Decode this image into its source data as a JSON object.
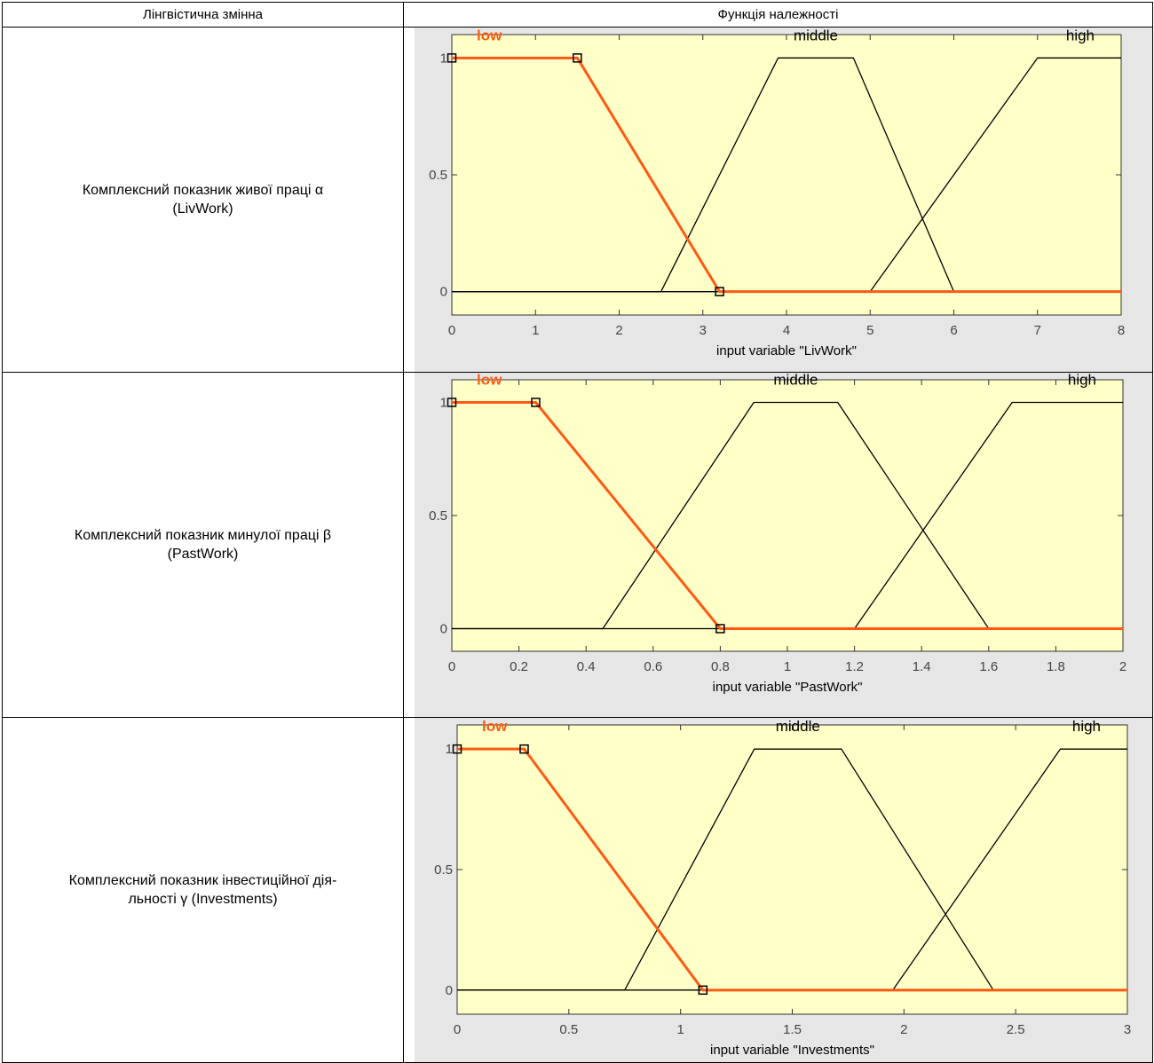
{
  "table": {
    "header": [
      "Лінгвістична змінна",
      "Функція належності"
    ],
    "rows": [
      {
        "label_line1": "Комплексний показник живої праці α",
        "label_line2": "(LivWork)"
      },
      {
        "label_line1": "Комплексний показник минулої праці β",
        "label_line2": "(PastWork)"
      },
      {
        "label_line1": "Комплексний показник інвестиційної дія-",
        "label_line2": "льності γ (Investments)"
      }
    ]
  },
  "colors": {
    "figure_bg": "#e6e6e6",
    "axes_bg": "#ffffc8",
    "selected": "#ff5a14",
    "line": "#000000"
  },
  "chart_data": [
    {
      "type": "line",
      "xlabel": "input variable \"LivWork\"",
      "xlim": [
        0,
        8
      ],
      "ylim": [
        0,
        1
      ],
      "xticks": [
        "0",
        "1",
        "2",
        "3",
        "4",
        "5",
        "6",
        "7",
        "8"
      ],
      "yticks": [
        "0",
        "0.5",
        "1"
      ],
      "series": [
        {
          "name": "low",
          "selected": true,
          "x": [
            0,
            1.5,
            3.2,
            8
          ],
          "y": [
            1,
            1,
            0,
            0
          ]
        },
        {
          "name": "middle",
          "selected": false,
          "x": [
            0,
            2.5,
            3.9,
            4.8,
            6,
            8
          ],
          "y": [
            0,
            0,
            1,
            1,
            0,
            0
          ]
        },
        {
          "name": "high",
          "selected": false,
          "x": [
            0,
            5,
            7,
            8
          ],
          "y": [
            0,
            0,
            1,
            1
          ]
        }
      ]
    },
    {
      "type": "line",
      "xlabel": "input variable \"PastWork\"",
      "xlim": [
        0,
        2
      ],
      "ylim": [
        0,
        1
      ],
      "xticks": [
        "0",
        "0.2",
        "0.4",
        "0.6",
        "0.8",
        "1",
        "1.2",
        "1.4",
        "1.6",
        "1.8",
        "2"
      ],
      "yticks": [
        "0",
        "0.5",
        "1"
      ],
      "series": [
        {
          "name": "low",
          "selected": true,
          "x": [
            0,
            0.25,
            0.8,
            2
          ],
          "y": [
            1,
            1,
            0,
            0
          ]
        },
        {
          "name": "middle",
          "selected": false,
          "x": [
            0,
            0.45,
            0.9,
            1.15,
            1.6,
            2
          ],
          "y": [
            0,
            0,
            1,
            1,
            0,
            0
          ]
        },
        {
          "name": "high",
          "selected": false,
          "x": [
            0,
            1.2,
            1.67,
            2
          ],
          "y": [
            0,
            0,
            1,
            1
          ]
        }
      ]
    },
    {
      "type": "line",
      "xlabel": "input variable \"Investments\"",
      "xlim": [
        0,
        3
      ],
      "ylim": [
        0,
        1
      ],
      "xticks": [
        "0",
        "0.5",
        "1",
        "1.5",
        "2",
        "2.5",
        "3"
      ],
      "yticks": [
        "0",
        "0.5",
        "1"
      ],
      "series": [
        {
          "name": "low",
          "selected": true,
          "x": [
            0,
            0.3,
            1.1,
            3
          ],
          "y": [
            1,
            1,
            0,
            0
          ]
        },
        {
          "name": "middle",
          "selected": false,
          "x": [
            0,
            0.75,
            1.33,
            1.72,
            2.4,
            3
          ],
          "y": [
            0,
            0,
            1,
            1,
            0,
            0
          ]
        },
        {
          "name": "high",
          "selected": false,
          "x": [
            0,
            1.95,
            2.7,
            3
          ],
          "y": [
            0,
            0,
            1,
            1
          ]
        }
      ]
    }
  ]
}
